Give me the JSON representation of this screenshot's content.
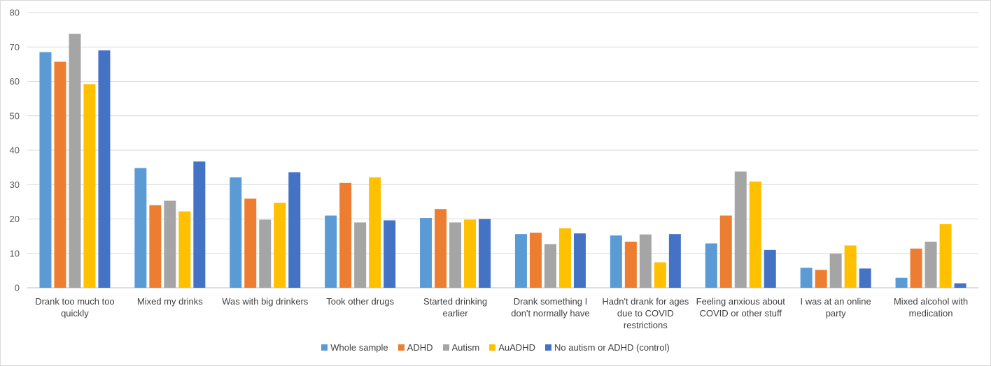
{
  "chart_data": {
    "type": "bar",
    "title": "",
    "xlabel": "",
    "ylabel": "",
    "ylim": [
      0,
      80
    ],
    "yticks": [
      0,
      10,
      20,
      30,
      40,
      50,
      60,
      70,
      80
    ],
    "grid": true,
    "legend_position": "bottom",
    "categories": [
      [
        "Drank too much too",
        "quickly"
      ],
      [
        "Mixed my drinks"
      ],
      [
        "Was with big drinkers"
      ],
      [
        "Took other drugs"
      ],
      [
        "Started drinking",
        "earlier"
      ],
      [
        "Drank something I",
        "don't normally have"
      ],
      [
        "Hadn't drank for ages",
        "due to COVID",
        "restrictions"
      ],
      [
        "Feeling anxious about",
        "COVID or other stuff"
      ],
      [
        "I was at an online",
        "party"
      ],
      [
        "Mixed alcohol with",
        "medication"
      ]
    ],
    "series": [
      {
        "name": "Whole sample",
        "color": "#5b9bd5",
        "values": [
          68.5,
          34.8,
          32.1,
          21.0,
          20.3,
          15.6,
          15.2,
          12.9,
          5.8,
          2.9
        ]
      },
      {
        "name": "ADHD",
        "color": "#ed7d31",
        "values": [
          65.7,
          24.0,
          25.9,
          30.5,
          22.9,
          16.0,
          13.4,
          21.0,
          5.2,
          11.4
        ]
      },
      {
        "name": "Autism",
        "color": "#a5a5a5",
        "values": [
          73.8,
          25.3,
          19.8,
          19.0,
          19.0,
          12.7,
          15.5,
          33.8,
          9.9,
          13.4
        ]
      },
      {
        "name": "AuADHD",
        "color": "#ffc000",
        "values": [
          59.2,
          22.2,
          24.7,
          32.1,
          19.8,
          17.3,
          7.4,
          30.9,
          12.3,
          18.5
        ]
      },
      {
        "name": "No autism or ADHD (control)",
        "color": "#4472c4",
        "values": [
          69.0,
          36.7,
          33.6,
          19.6,
          20.0,
          15.8,
          15.6,
          11.0,
          5.6,
          1.3
        ]
      }
    ]
  }
}
